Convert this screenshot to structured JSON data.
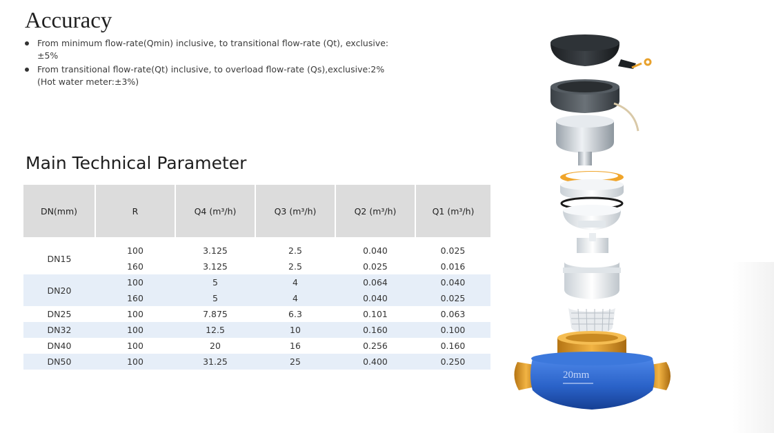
{
  "accuracy": {
    "title": "Accuracy",
    "bullets": [
      "From minimum flow-rate(Qmin) inclusive, to transitional flow-rate (Qt), exclusive:±5%",
      "From transitional flow-rate(Qt) inclusive, to overload flow-rate (Qs),exclusive:2%(Hot water meter:±3%)"
    ]
  },
  "params": {
    "title": "Main Technical Parameter",
    "headers": [
      "DN(mm)",
      "R",
      "Q4 (m³/h)",
      "Q3 (m³/h)",
      "Q2 (m³/h)",
      "Q1 (m³/h)"
    ],
    "rows": [
      {
        "dn": "DN15",
        "r": [
          "100",
          "160"
        ],
        "q4": [
          "3.125",
          "3.125"
        ],
        "q3": [
          "2.5",
          "2.5"
        ],
        "q2": [
          "0.040",
          "0.025"
        ],
        "q1": [
          "0.025",
          "0.016"
        ]
      },
      {
        "dn": "DN20",
        "r": [
          "100",
          "160"
        ],
        "q4": [
          "5",
          "5"
        ],
        "q3": [
          "4",
          "4"
        ],
        "q2": [
          "0.064",
          "0.040"
        ],
        "q1": [
          "0.040",
          "0.025"
        ]
      },
      {
        "dn": "DN25",
        "r": "100",
        "q4": "7.875",
        "q3": "6.3",
        "q2": "0.101",
        "q1": "0.063"
      },
      {
        "dn": "DN32",
        "r": "100",
        "q4": "12.5",
        "q3": "10",
        "q2": "0.160",
        "q1": "0.100"
      },
      {
        "dn": "DN40",
        "r": "100",
        "q4": "20",
        "q3": "16",
        "q2": "0.256",
        "q1": "0.160"
      },
      {
        "dn": "DN50",
        "r": "100",
        "q4": "31.25",
        "q3": "25",
        "q2": "0.400",
        "q1": "0.250"
      }
    ]
  },
  "product_image": {
    "icon": "exploded-water-meter-icon",
    "body_label": "20mm",
    "colors": {
      "body": "#2f6ad0",
      "brass": "#e0a233",
      "cover": "#2b2f33",
      "ring": "#f0a52b"
    }
  }
}
